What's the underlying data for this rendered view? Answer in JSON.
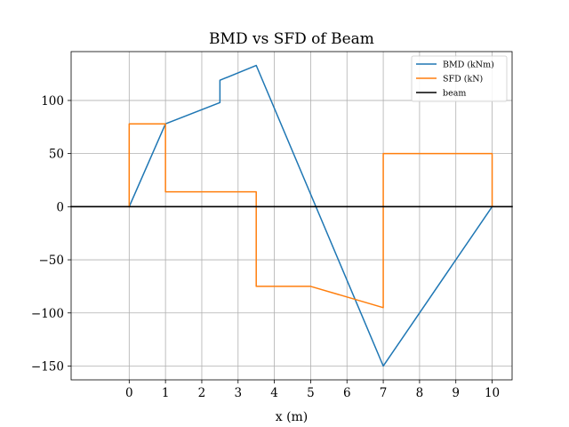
{
  "chart_data": {
    "type": "line",
    "title": "BMD vs SFD of Beam",
    "xlabel": "x (m)",
    "ylabel": "",
    "xlim": [
      -1.6,
      10.55
    ],
    "ylim": [
      -163,
      146
    ],
    "xticks": [
      0,
      1,
      2,
      3,
      4,
      5,
      6,
      7,
      8,
      9,
      10
    ],
    "yticks": [
      -150,
      -100,
      -50,
      0,
      50,
      100
    ],
    "ytick_labels": [
      "−150",
      "−100",
      "−50",
      "0",
      "50",
      "100"
    ],
    "grid": true,
    "legend_position": "top-right",
    "series": [
      {
        "name": "BMD (kNm)",
        "color": "#1f77b4",
        "x": [
          0,
          1,
          2.5,
          2.5,
          3.5,
          7,
          10
        ],
        "y": [
          0,
          78,
          98,
          119,
          133,
          -150,
          0
        ]
      },
      {
        "name": "SFD (kN)",
        "color": "#ff7f0e",
        "x": [
          0,
          0,
          1,
          1,
          3.5,
          3.5,
          5,
          7,
          7,
          10,
          10
        ],
        "y": [
          0,
          78,
          78,
          14,
          14,
          -75,
          -75,
          -95,
          50,
          50,
          0
        ]
      },
      {
        "name": "beam",
        "color": "#000000",
        "x": [
          -1.6,
          10.55
        ],
        "y": [
          0,
          0
        ]
      }
    ]
  }
}
